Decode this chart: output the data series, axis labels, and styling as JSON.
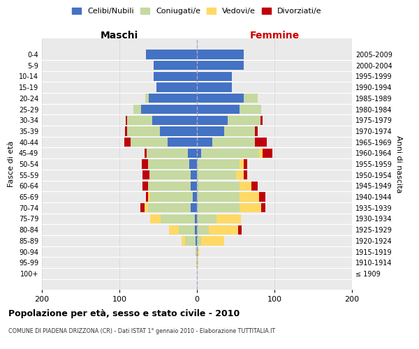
{
  "age_groups": [
    "100+",
    "95-99",
    "90-94",
    "85-89",
    "80-84",
    "75-79",
    "70-74",
    "65-69",
    "60-64",
    "55-59",
    "50-54",
    "45-49",
    "40-44",
    "35-39",
    "30-34",
    "25-29",
    "20-24",
    "15-19",
    "10-14",
    "5-9",
    "0-4"
  ],
  "birth_years": [
    "≤ 1909",
    "1910-1914",
    "1915-1919",
    "1920-1924",
    "1925-1929",
    "1930-1934",
    "1935-1939",
    "1940-1944",
    "1945-1949",
    "1950-1954",
    "1955-1959",
    "1960-1964",
    "1965-1969",
    "1970-1974",
    "1975-1979",
    "1980-1984",
    "1985-1989",
    "1990-1994",
    "1995-1999",
    "2000-2004",
    "2005-2009"
  ],
  "maschi": {
    "celibi": [
      0,
      0,
      0,
      2,
      3,
      3,
      8,
      5,
      8,
      8,
      10,
      12,
      38,
      48,
      58,
      72,
      62,
      52,
      56,
      56,
      66
    ],
    "coniugati": [
      0,
      1,
      2,
      13,
      20,
      44,
      55,
      55,
      55,
      53,
      53,
      53,
      48,
      42,
      32,
      10,
      5,
      0,
      0,
      0,
      0
    ],
    "vedovi": [
      0,
      0,
      0,
      5,
      13,
      13,
      5,
      3,
      0,
      0,
      0,
      0,
      0,
      0,
      0,
      0,
      0,
      0,
      0,
      0,
      0
    ],
    "divorziati": [
      0,
      0,
      0,
      0,
      0,
      0,
      5,
      3,
      7,
      9,
      8,
      3,
      8,
      3,
      2,
      0,
      0,
      0,
      0,
      0,
      0
    ]
  },
  "femmine": {
    "nubili": [
      0,
      0,
      1,
      0,
      0,
      0,
      0,
      0,
      0,
      0,
      0,
      5,
      20,
      35,
      40,
      55,
      60,
      45,
      45,
      60,
      60
    ],
    "coniugate": [
      0,
      0,
      0,
      5,
      15,
      25,
      55,
      55,
      55,
      50,
      55,
      75,
      55,
      40,
      42,
      28,
      18,
      0,
      0,
      0,
      0
    ],
    "vedove": [
      0,
      2,
      2,
      30,
      38,
      32,
      28,
      25,
      15,
      10,
      5,
      5,
      0,
      0,
      0,
      0,
      0,
      0,
      0,
      0,
      0
    ],
    "divorziate": [
      0,
      0,
      0,
      0,
      5,
      0,
      5,
      8,
      8,
      5,
      5,
      12,
      15,
      3,
      3,
      0,
      0,
      0,
      0,
      0,
      0
    ]
  },
  "colors": {
    "celibi_nubili": "#4472C4",
    "coniugati": "#C5D9A0",
    "vedovi": "#FFD966",
    "divorziati": "#C0000B"
  },
  "xlim": 200,
  "title": "Popolazione per età, sesso e stato civile - 2010",
  "subtitle": "COMUNE DI PIADENA DRIZZONA (CR) - Dati ISTAT 1° gennaio 2010 - Elaborazione TUTTITALIA.IT",
  "ylabel_left": "Fasce di età",
  "ylabel_right": "Anni di nascita",
  "xlabel_maschi": "Maschi",
  "xlabel_femmine": "Femmine",
  "legend_labels": [
    "Celibi/Nubili",
    "Coniugati/e",
    "Vedovi/e",
    "Divorziati/e"
  ],
  "background_color": "#eaeaea",
  "bar_height": 0.85
}
